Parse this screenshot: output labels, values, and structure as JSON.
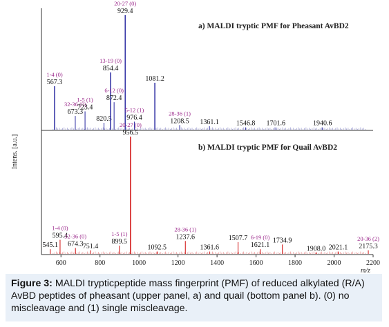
{
  "chart_data": [
    {
      "type": "bar",
      "panel": "upper",
      "title": "a) MALDI tryptic PMF for Pheasant AvBD2",
      "color": "#3a3aa8",
      "peaks": [
        {
          "mz": 567.3,
          "rel": 0.38,
          "label": "567.3",
          "annotation": "1-4 (0)"
        },
        {
          "mz": 673.3,
          "rel": 0.12,
          "label": "673.3",
          "annotation": "32-36 (0)"
        },
        {
          "mz": 723.4,
          "rel": 0.16,
          "label": "723.4",
          "annotation": "1-5 (1)"
        },
        {
          "mz": 820.5,
          "rel": 0.06,
          "label": "820.5",
          "annotation": ""
        },
        {
          "mz": 854.4,
          "rel": 0.5,
          "label": "854.4",
          "annotation": "13-19 (0)"
        },
        {
          "mz": 872.4,
          "rel": 0.24,
          "label": "872.4",
          "annotation": "6-12 (0)"
        },
        {
          "mz": 929.4,
          "rel": 1.0,
          "label": "929.4",
          "annotation": "20-27 (0)"
        },
        {
          "mz": 976.4,
          "rel": 0.07,
          "label": "976.4",
          "annotation": "5-12 (1)"
        },
        {
          "mz": 1081.2,
          "rel": 0.41,
          "label": "1081.2",
          "annotation": ""
        },
        {
          "mz": 1208.5,
          "rel": 0.04,
          "label": "1208.5",
          "annotation": "28-36 (1)"
        },
        {
          "mz": 1361.1,
          "rel": 0.03,
          "label": "1361.1",
          "annotation": ""
        },
        {
          "mz": 1546.8,
          "rel": 0.02,
          "label": "1546.8",
          "annotation": ""
        },
        {
          "mz": 1701.6,
          "rel": 0.02,
          "label": "1701.6",
          "annotation": ""
        },
        {
          "mz": 1940.6,
          "rel": 0.02,
          "label": "1940.6",
          "annotation": ""
        }
      ]
    },
    {
      "type": "bar",
      "panel": "lower",
      "title": "b) MALDI tryptic PMF for Quail AvBD2",
      "color": "#d42020",
      "peaks": [
        {
          "mz": 545.1,
          "rel": 0.04,
          "label": "545.1",
          "annotation": ""
        },
        {
          "mz": 595.4,
          "rel": 0.12,
          "label": "595.4",
          "annotation": "1-4 (0)"
        },
        {
          "mz": 674.3,
          "rel": 0.05,
          "label": "674.3",
          "annotation": "32-36 (0)"
        },
        {
          "mz": 751.4,
          "rel": 0.03,
          "label": "751.4",
          "annotation": ""
        },
        {
          "mz": 899.5,
          "rel": 0.07,
          "label": "899.5",
          "annotation": "1-5 (1)"
        },
        {
          "mz": 956.5,
          "rel": 1.0,
          "label": "956.5",
          "annotation": "20-27 (0)"
        },
        {
          "mz": 1092.5,
          "rel": 0.02,
          "label": "1092.5",
          "annotation": ""
        },
        {
          "mz": 1237.6,
          "rel": 0.11,
          "label": "1237.6",
          "annotation": "28-36 (1)"
        },
        {
          "mz": 1361.6,
          "rel": 0.02,
          "label": "1361.6",
          "annotation": ""
        },
        {
          "mz": 1507.7,
          "rel": 0.1,
          "label": "1507.7",
          "annotation": ""
        },
        {
          "mz": 1621.1,
          "rel": 0.04,
          "label": "1621.1",
          "annotation": "6-19 (0)"
        },
        {
          "mz": 1734.9,
          "rel": 0.08,
          "label": "1734.9",
          "annotation": ""
        },
        {
          "mz": 1908.0,
          "rel": 0.01,
          "label": "1908.0",
          "annotation": ""
        },
        {
          "mz": 2021.1,
          "rel": 0.02,
          "label": "2021.1",
          "annotation": ""
        },
        {
          "mz": 2175.3,
          "rel": 0.03,
          "label": "2175.3",
          "annotation": "20-36 (2)"
        }
      ]
    }
  ],
  "axes": {
    "xlabel": "m/z",
    "ylabel": "Intens. [a.u.]",
    "xlim": [
      500,
      2200
    ],
    "xticks": [
      600,
      800,
      1000,
      1200,
      1400,
      1600,
      1800,
      2000,
      2200
    ]
  },
  "caption": {
    "label": "Figure 3:",
    "text": " MALDI trypticpeptide mass fingerprint (PMF) of reduced alkylated (R/A) AvBD peptides of pheasant (upper panel, a) and quail (bottom panel b). (0) no miscleavage and (1) single miscleavage."
  },
  "colors": {
    "annotation": "#9c2a8c",
    "axis": "#333333"
  }
}
